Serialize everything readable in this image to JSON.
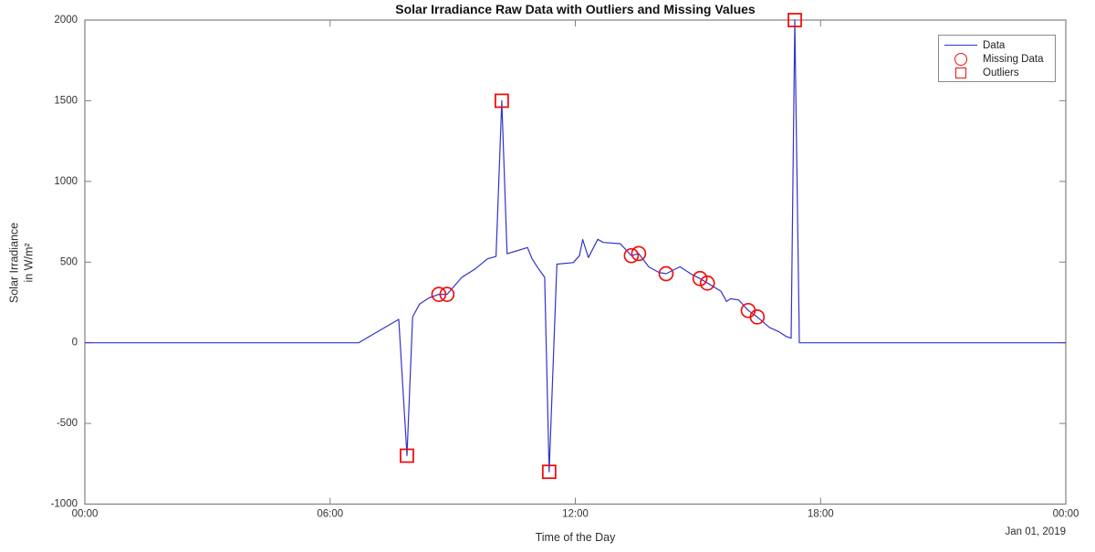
{
  "chart_data": {
    "type": "line",
    "title": "Solar Irradiance Raw Data with Outliers and Missing Values",
    "xlabel": "Time of the Day",
    "ylabel_line1": "Solar Irradiance",
    "ylabel_line2": "in W/m²",
    "date_annotation": "Jan 01, 2019",
    "x_range": [
      0,
      24
    ],
    "y_range": [
      -1000,
      2000
    ],
    "grid": "off",
    "x_ticks": [
      {
        "value": 0,
        "label": "00:00"
      },
      {
        "value": 6,
        "label": "06:00"
      },
      {
        "value": 12,
        "label": "12:00"
      },
      {
        "value": 18,
        "label": "18:00"
      },
      {
        "value": 24,
        "label": "00:00"
      }
    ],
    "y_ticks": [
      {
        "value": -1000,
        "label": "-1000"
      },
      {
        "value": -500,
        "label": "-500"
      },
      {
        "value": 0,
        "label": "0"
      },
      {
        "value": 500,
        "label": "500"
      },
      {
        "value": 1000,
        "label": "1000"
      },
      {
        "value": 1500,
        "label": "1500"
      },
      {
        "value": 2000,
        "label": "2000"
      }
    ],
    "legend": {
      "position": "top-right",
      "entries": [
        {
          "label": "Data",
          "marker": "line"
        },
        {
          "label": "Missing Data",
          "marker": "circle"
        },
        {
          "label": "Outliers",
          "marker": "square"
        }
      ]
    },
    "colors": {
      "line": "#3333cc",
      "marker": "#ee1111",
      "axis": "#808080",
      "tick_text": "#333333"
    },
    "series": [
      {
        "name": "Data",
        "units": {
          "x": "hours",
          "y": "W/m2"
        },
        "points": [
          [
            0,
            0
          ],
          [
            6.7,
            0
          ],
          [
            6.78,
            12
          ],
          [
            7.68,
            145
          ],
          [
            7.88,
            -700
          ],
          [
            8.02,
            160
          ],
          [
            8.19,
            240
          ],
          [
            8.42,
            278
          ],
          [
            8.66,
            300
          ],
          [
            8.86,
            300
          ],
          [
            9.05,
            355
          ],
          [
            9.22,
            405
          ],
          [
            9.55,
            458
          ],
          [
            9.85,
            520
          ],
          [
            10.06,
            535
          ],
          [
            10.2,
            1500
          ],
          [
            10.33,
            552
          ],
          [
            10.6,
            572
          ],
          [
            10.83,
            590
          ],
          [
            10.94,
            522
          ],
          [
            11.08,
            466
          ],
          [
            11.25,
            405
          ],
          [
            11.36,
            -800
          ],
          [
            11.55,
            487
          ],
          [
            11.95,
            497
          ],
          [
            12.1,
            540
          ],
          [
            12.18,
            640
          ],
          [
            12.32,
            528
          ],
          [
            12.55,
            641
          ],
          [
            12.68,
            622
          ],
          [
            13.1,
            614
          ],
          [
            13.37,
            540
          ],
          [
            13.55,
            553
          ],
          [
            13.8,
            470
          ],
          [
            14.05,
            436
          ],
          [
            14.22,
            428
          ],
          [
            14.56,
            471
          ],
          [
            14.83,
            426
          ],
          [
            15.05,
            398
          ],
          [
            15.23,
            370
          ],
          [
            15.56,
            320
          ],
          [
            15.7,
            256
          ],
          [
            15.8,
            273
          ],
          [
            16,
            265
          ],
          [
            16.23,
            200
          ],
          [
            16.45,
            160
          ],
          [
            16.75,
            95
          ],
          [
            16.97,
            70
          ],
          [
            17.15,
            40
          ],
          [
            17.28,
            28
          ],
          [
            17.37,
            2000
          ],
          [
            17.48,
            0
          ],
          [
            24,
            0
          ]
        ]
      }
    ],
    "missing_data_points": [
      [
        8.66,
        300
      ],
      [
        8.86,
        300
      ],
      [
        13.37,
        540
      ],
      [
        13.55,
        553
      ],
      [
        14.22,
        428
      ],
      [
        15.05,
        398
      ],
      [
        15.23,
        370
      ],
      [
        16.23,
        200
      ],
      [
        16.45,
        160
      ]
    ],
    "outlier_points": [
      [
        7.88,
        -700
      ],
      [
        10.2,
        1500
      ],
      [
        11.36,
        -800
      ],
      [
        17.37,
        2000
      ]
    ]
  }
}
